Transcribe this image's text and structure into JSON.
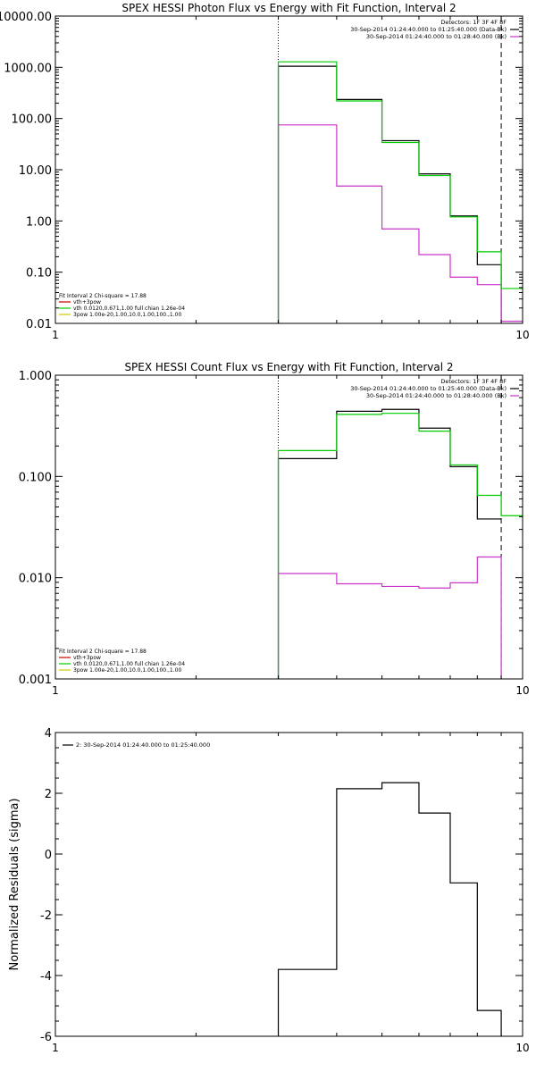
{
  "colors": {
    "data": "#000000",
    "background": "#cc33cc",
    "fit_total": "#00cc00",
    "component_vth": "#cc0000",
    "component_3pow": "#00cc00",
    "component_3pow_alt": "#cccc00"
  },
  "chart_data": [
    {
      "type": "line",
      "title": "SPEX HESSI Photon Flux vs Energy with Fit Function, Interval 2",
      "xlabel": "",
      "ylabel": "",
      "xscale": "log",
      "yscale": "log",
      "xlim": [
        1,
        10
      ],
      "ylim": [
        0.01,
        10000
      ],
      "xticks": [
        1,
        10
      ],
      "xtick_labels": [
        "1",
        "10"
      ],
      "yticks": [
        0.01,
        0.1,
        1,
        10,
        100,
        1000,
        10000
      ],
      "ytick_labels": [
        "0.01",
        "0.10",
        "1.00",
        "10.00",
        "100.00",
        "1000.00",
        "10000.00"
      ],
      "vlines": [
        {
          "x": 3.0,
          "style": "dotted"
        },
        {
          "x": 9.0,
          "style": "dashed"
        }
      ],
      "legend_top_right": [
        "Detectors: 1F 3F 4F 8F",
        "30-Sep-2014 01:24:40.000 to 01:25:40.000 (Data-Bk)",
        "30-Sep-2014 01:24:40.000 to 01:28:40.000 (Bk)"
      ],
      "legend_bottom_left": [
        "Fit Interval 2   Chi-square = 17.88",
        "vth+3pow",
        "vth 0.0120,0.671,1.00   full chian 1.26e-04",
        "3pow 1.00e-20,1.00,10.0,1.00,100.,1.00"
      ],
      "bin_edges": [
        3.0,
        3.5,
        4.0,
        4.5,
        5.0,
        5.5,
        6.0,
        6.5,
        7.0,
        7.5,
        8.0,
        8.5,
        9.0,
        10.0
      ],
      "series": [
        {
          "name": "30-Sep-2014 01:24:40.000 to 01:25:40.000 (Data-Bk)",
          "role": "data",
          "values": [
            1050,
            1050,
            235,
            235,
            37,
            37,
            8.3,
            8.3,
            1.25,
            1.25,
            0.14,
            0.14,
            null
          ]
        },
        {
          "name": "30-Sep-2014 01:24:40.000 to 01:28:40.000 (Bk)",
          "role": "background",
          "values": [
            75,
            75,
            4.8,
            4.8,
            0.7,
            0.7,
            0.22,
            0.22,
            0.08,
            0.08,
            0.057,
            0.057,
            0.011
          ]
        },
        {
          "name": "vth+3pow",
          "role": "fit_total",
          "values": [
            1280,
            1280,
            220,
            220,
            34,
            34,
            7.7,
            7.7,
            1.2,
            1.2,
            0.25,
            0.25,
            0.048
          ]
        }
      ]
    },
    {
      "type": "line",
      "title": "SPEX HESSI Count Flux vs Energy with Fit Function, Interval 2",
      "xlabel": "",
      "ylabel": "",
      "xscale": "log",
      "yscale": "log",
      "xlim": [
        1,
        10
      ],
      "ylim": [
        0.001,
        1
      ],
      "xticks": [
        1,
        10
      ],
      "xtick_labels": [
        "1",
        "10"
      ],
      "yticks": [
        0.001,
        0.01,
        0.1,
        1
      ],
      "ytick_labels": [
        "0.001",
        "0.010",
        "0.100",
        "1.000"
      ],
      "vlines": [
        {
          "x": 3.0,
          "style": "dotted"
        },
        {
          "x": 9.0,
          "style": "dashed"
        }
      ],
      "legend_top_right": [
        "Detectors: 1F 3F 4F 8F",
        "30-Sep-2014 01:24:40.000 to 01:25:40.000 (Data-Bk)",
        "30-Sep-2014 01:24:40.000 to 01:28:40.000 (Bk)"
      ],
      "legend_bottom_left": [
        "Fit Interval 2   Chi-square = 17.88",
        "vth+3pow",
        "vth 0.0120,0.671,1.00   full chian 1.26e-04",
        "3pow 1.00e-20,1.00,10.0,1.00,100.,1.00"
      ],
      "bin_edges": [
        3.0,
        3.5,
        4.0,
        4.5,
        5.0,
        5.5,
        6.0,
        6.5,
        7.0,
        7.5,
        8.0,
        8.5,
        9.0,
        10.0
      ],
      "series": [
        {
          "name": "30-Sep-2014 01:24:40.000 to 01:25:40.000 (Data-Bk)",
          "role": "data",
          "values": [
            0.15,
            0.15,
            0.44,
            0.44,
            0.46,
            0.46,
            0.3,
            0.3,
            0.125,
            0.125,
            0.038,
            0.038,
            null
          ]
        },
        {
          "name": "30-Sep-2014 01:24:40.000 to 01:28:40.000 (Bk)",
          "role": "background",
          "values": [
            0.011,
            0.011,
            0.0087,
            0.0087,
            0.0082,
            0.0082,
            0.0079,
            0.0079,
            0.0089,
            0.0089,
            0.016,
            0.016,
            null
          ]
        },
        {
          "name": "vth+3pow",
          "role": "fit_total",
          "values": [
            0.18,
            0.18,
            0.41,
            0.41,
            0.42,
            0.42,
            0.28,
            0.28,
            0.13,
            0.13,
            0.065,
            0.065,
            0.041
          ]
        }
      ]
    },
    {
      "type": "line",
      "title": "",
      "xlabel": "",
      "ylabel": "Normalized Residuals (sigma)",
      "xscale": "log",
      "yscale": "linear",
      "xlim": [
        1,
        10
      ],
      "ylim": [
        -6,
        4
      ],
      "xticks": [
        1,
        10
      ],
      "xtick_labels": [
        "1",
        "10"
      ],
      "yticks": [
        -6,
        -4,
        -2,
        0,
        2,
        4
      ],
      "ytick_labels": [
        "-6",
        "-4",
        "-2",
        "0",
        "2",
        "4"
      ],
      "legend_top_left": [
        "2: 30-Sep-2014 01:24:40.000 to 01:25:40.000"
      ],
      "bin_edges": [
        3.0,
        3.5,
        4.0,
        4.5,
        5.0,
        5.5,
        6.0,
        6.5,
        7.0,
        7.5,
        8.0,
        8.5,
        9.0
      ],
      "series": [
        {
          "name": "2: 30-Sep-2014 01:24:40.000 to 01:25:40.000",
          "role": "residuals",
          "values": [
            -3.8,
            -3.8,
            2.15,
            2.15,
            2.35,
            2.35,
            1.35,
            1.35,
            -0.95,
            -0.95,
            -5.15,
            -5.15
          ]
        }
      ]
    }
  ]
}
